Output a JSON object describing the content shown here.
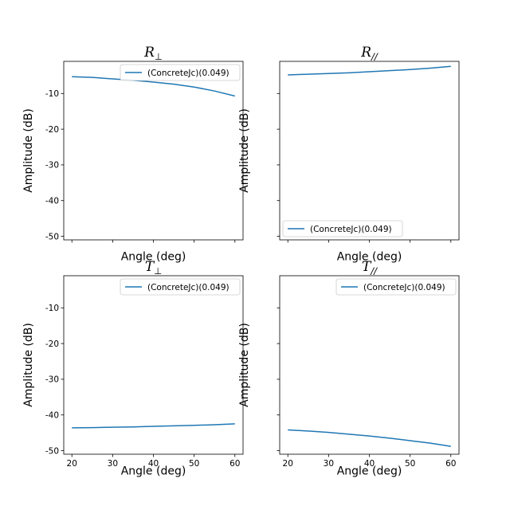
{
  "chart_data": [
    {
      "type": "line",
      "title": "R",
      "title_sub": "⊥",
      "xlabel": "Angle (deg)",
      "ylabel": "Amplitude (dB)",
      "xlim": [
        18,
        62
      ],
      "ylim": [
        -51,
        -1
      ],
      "xticks": [
        20,
        30,
        40,
        50,
        60
      ],
      "yticks": [
        -10,
        -20,
        -30,
        -40,
        -50
      ],
      "show_xtick_labels": false,
      "show_ytick_labels": true,
      "legend": "top-right",
      "color": "#1f77b4",
      "series": [
        {
          "name": "(ConcreteJc)(0.049)",
          "x": [
            20,
            25,
            30,
            35,
            40,
            45,
            50,
            55,
            60
          ],
          "y": [
            -5.3,
            -5.5,
            -5.9,
            -6.3,
            -6.8,
            -7.4,
            -8.2,
            -9.3,
            -10.7
          ]
        }
      ]
    },
    {
      "type": "line",
      "title": "R",
      "title_sub": "//",
      "xlabel": "Angle (deg)",
      "ylabel": "Amplitude (dB)",
      "xlim": [
        18,
        62
      ],
      "ylim": [
        -51,
        -1
      ],
      "xticks": [
        20,
        30,
        40,
        50,
        60
      ],
      "yticks": [
        -10,
        -20,
        -30,
        -40,
        -50
      ],
      "show_xtick_labels": false,
      "show_ytick_labels": false,
      "legend": "bottom-left",
      "color": "#1f77b4",
      "series": [
        {
          "name": "(ConcreteJc)(0.049)",
          "x": [
            20,
            25,
            30,
            35,
            40,
            45,
            50,
            55,
            60
          ],
          "y": [
            -4.8,
            -4.6,
            -4.4,
            -4.2,
            -3.9,
            -3.6,
            -3.3,
            -2.9,
            -2.4
          ]
        }
      ]
    },
    {
      "type": "line",
      "title": "T",
      "title_sub": "⊥",
      "xlabel": "Angle (deg)",
      "ylabel": "Amplitude (dB)",
      "xlim": [
        18,
        62
      ],
      "ylim": [
        -51,
        -1
      ],
      "xticks": [
        20,
        30,
        40,
        50,
        60
      ],
      "yticks": [
        -10,
        -20,
        -30,
        -40,
        -50
      ],
      "show_xtick_labels": true,
      "show_ytick_labels": true,
      "legend": "top-right",
      "color": "#1f77b4",
      "series": [
        {
          "name": "(ConcreteJc)(0.049)",
          "x": [
            20,
            25,
            30,
            35,
            40,
            45,
            50,
            55,
            60
          ],
          "y": [
            -43.6,
            -43.55,
            -43.45,
            -43.35,
            -43.2,
            -43.05,
            -42.9,
            -42.75,
            -42.5
          ]
        }
      ]
    },
    {
      "type": "line",
      "title": "T",
      "title_sub": "//",
      "xlabel": "Angle (deg)",
      "ylabel": "Amplitude (dB)",
      "xlim": [
        18,
        62
      ],
      "ylim": [
        -51,
        -1
      ],
      "xticks": [
        20,
        30,
        40,
        50,
        60
      ],
      "yticks": [
        -10,
        -20,
        -30,
        -40,
        -50
      ],
      "show_xtick_labels": true,
      "show_ytick_labels": false,
      "legend": "top-right",
      "color": "#1f77b4",
      "series": [
        {
          "name": "(ConcreteJc)(0.049)",
          "x": [
            20,
            25,
            30,
            35,
            40,
            45,
            50,
            55,
            60
          ],
          "y": [
            -44.2,
            -44.5,
            -44.9,
            -45.4,
            -45.9,
            -46.5,
            -47.2,
            -47.9,
            -48.8
          ]
        }
      ]
    }
  ]
}
